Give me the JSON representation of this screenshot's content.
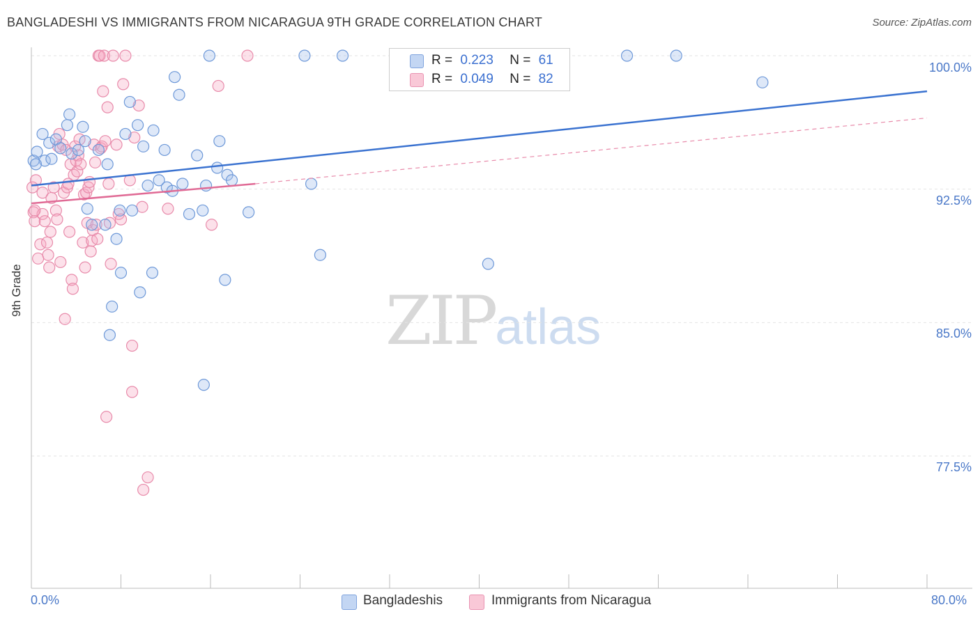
{
  "title": "BANGLADESHI VS IMMIGRANTS FROM NICARAGUA 9TH GRADE CORRELATION CHART",
  "source": "Source: ZipAtlas.com",
  "watermark": {
    "zip": "ZIP",
    "atlas": "atlas"
  },
  "legend": {
    "r_label": "R =",
    "n_label": "N =",
    "series1": {
      "r": "0.223",
      "n": "61"
    },
    "series2": {
      "r": "0.049",
      "n": "82"
    }
  },
  "bottom_legend": {
    "series1": "Bangladeshis",
    "series2": "Immigrants from Nicaragua"
  },
  "colors": {
    "blue": "#3a72d0",
    "blue_fill": "#a8c4ee",
    "pink": "#e06a95",
    "pink_fill": "#f6b6ca"
  },
  "chart_data": {
    "type": "scatter",
    "title": "BANGLADESHI VS IMMIGRANTS FROM NICARAGUA 9TH GRADE CORRELATION CHART",
    "xlabel": "",
    "ylabel": "9th Grade",
    "xlim": [
      0,
      80
    ],
    "ylim": [
      70,
      100.8
    ],
    "x_tick_labels": [
      "0.0%",
      "80.0%"
    ],
    "y_ticks": [
      77.5,
      85.0,
      92.5,
      100.0
    ],
    "y_tick_labels": [
      "77.5%",
      "85.0%",
      "92.5%",
      "100.0%"
    ],
    "series": [
      {
        "name": "Bangladeshis",
        "color": "#3a72d0",
        "trend": {
          "x0": 0,
          "y0": 92.7,
          "x1": 80,
          "y1": 98.0,
          "dashed_extension": false
        },
        "points": [
          [
            0.2,
            94.1
          ],
          [
            0.5,
            94.6
          ],
          [
            1.0,
            95.6
          ],
          [
            1.2,
            94.1
          ],
          [
            1.6,
            95.1
          ],
          [
            1.8,
            94.2
          ],
          [
            2.2,
            95.3
          ],
          [
            2.6,
            94.8
          ],
          [
            3.2,
            96.1
          ],
          [
            3.4,
            96.7
          ],
          [
            3.6,
            94.5
          ],
          [
            4.2,
            94.7
          ],
          [
            4.6,
            96.0
          ],
          [
            4.8,
            95.2
          ],
          [
            5.0,
            91.4
          ],
          [
            5.4,
            90.5
          ],
          [
            6.0,
            94.7
          ],
          [
            6.6,
            90.5
          ],
          [
            6.8,
            93.9
          ],
          [
            7.0,
            84.3
          ],
          [
            7.2,
            85.9
          ],
          [
            7.6,
            89.7
          ],
          [
            7.9,
            91.3
          ],
          [
            8.0,
            87.8
          ],
          [
            8.4,
            95.6
          ],
          [
            8.8,
            97.4
          ],
          [
            9.0,
            91.3
          ],
          [
            9.5,
            96.1
          ],
          [
            9.7,
            86.7
          ],
          [
            10.0,
            94.9
          ],
          [
            10.4,
            92.7
          ],
          [
            10.8,
            87.8
          ],
          [
            10.9,
            95.8
          ],
          [
            11.4,
            93.0
          ],
          [
            11.9,
            94.7
          ],
          [
            12.1,
            92.6
          ],
          [
            12.6,
            92.4
          ],
          [
            12.8,
            98.8
          ],
          [
            13.2,
            97.8
          ],
          [
            13.5,
            92.8
          ],
          [
            14.1,
            91.1
          ],
          [
            14.8,
            94.4
          ],
          [
            15.3,
            91.3
          ],
          [
            15.4,
            81.5
          ],
          [
            15.6,
            92.7
          ],
          [
            15.9,
            100.0
          ],
          [
            16.6,
            93.7
          ],
          [
            16.8,
            95.2
          ],
          [
            17.3,
            87.4
          ],
          [
            17.5,
            93.3
          ],
          [
            17.9,
            93.0
          ],
          [
            19.4,
            91.2
          ],
          [
            24.4,
            100.0
          ],
          [
            25.0,
            92.8
          ],
          [
            25.8,
            88.8
          ],
          [
            27.8,
            100.0
          ],
          [
            40.8,
            88.3
          ],
          [
            53.2,
            100.0
          ],
          [
            57.6,
            100.0
          ],
          [
            65.3,
            98.5
          ],
          [
            0.4,
            93.9
          ]
        ]
      },
      {
        "name": "Immigrants from Nicaragua",
        "color": "#e06a95",
        "trend": {
          "x0": 0,
          "y0": 91.7,
          "x1": 20,
          "y1": 92.8,
          "dashed_extension": true,
          "x_end": 80,
          "y_end": 96.5
        },
        "points": [
          [
            0.1,
            92.6
          ],
          [
            0.2,
            91.2
          ],
          [
            0.3,
            90.7
          ],
          [
            0.4,
            93.0
          ],
          [
            0.6,
            88.6
          ],
          [
            0.8,
            89.4
          ],
          [
            1.0,
            91.1
          ],
          [
            1.0,
            92.3
          ],
          [
            1.2,
            90.7
          ],
          [
            1.4,
            89.5
          ],
          [
            1.5,
            88.8
          ],
          [
            1.6,
            88.1
          ],
          [
            1.7,
            90.1
          ],
          [
            1.8,
            92.0
          ],
          [
            2.0,
            92.6
          ],
          [
            2.2,
            91.3
          ],
          [
            2.3,
            90.8
          ],
          [
            2.4,
            94.9
          ],
          [
            2.5,
            95.6
          ],
          [
            2.6,
            88.4
          ],
          [
            2.8,
            95.0
          ],
          [
            2.9,
            92.3
          ],
          [
            3.0,
            85.2
          ],
          [
            3.1,
            94.7
          ],
          [
            3.2,
            92.6
          ],
          [
            3.3,
            92.8
          ],
          [
            3.4,
            90.1
          ],
          [
            3.5,
            93.9
          ],
          [
            3.6,
            87.4
          ],
          [
            3.7,
            86.9
          ],
          [
            3.8,
            93.3
          ],
          [
            3.9,
            94.9
          ],
          [
            4.0,
            94.1
          ],
          [
            4.1,
            93.5
          ],
          [
            4.2,
            94.4
          ],
          [
            4.3,
            95.3
          ],
          [
            4.4,
            93.9
          ],
          [
            4.6,
            89.5
          ],
          [
            4.7,
            92.2
          ],
          [
            4.8,
            88.1
          ],
          [
            4.9,
            92.3
          ],
          [
            5.0,
            90.6
          ],
          [
            5.1,
            92.6
          ],
          [
            5.2,
            92.9
          ],
          [
            5.3,
            89.0
          ],
          [
            5.4,
            89.6
          ],
          [
            5.5,
            90.2
          ],
          [
            5.6,
            95.0
          ],
          [
            5.7,
            94.0
          ],
          [
            5.8,
            90.5
          ],
          [
            5.9,
            89.7
          ],
          [
            6.0,
            100.0
          ],
          [
            6.1,
            100.0
          ],
          [
            6.2,
            94.8
          ],
          [
            6.3,
            94.9
          ],
          [
            6.4,
            98.0
          ],
          [
            6.5,
            100.0
          ],
          [
            6.6,
            95.2
          ],
          [
            6.7,
            79.7
          ],
          [
            6.8,
            97.1
          ],
          [
            6.9,
            92.8
          ],
          [
            7.0,
            90.6
          ],
          [
            7.1,
            88.3
          ],
          [
            7.3,
            100.0
          ],
          [
            7.6,
            95.0
          ],
          [
            7.8,
            91.1
          ],
          [
            8.0,
            90.8
          ],
          [
            8.2,
            98.4
          ],
          [
            8.4,
            100.0
          ],
          [
            8.8,
            93.0
          ],
          [
            9.0,
            83.7
          ],
          [
            9.0,
            81.1
          ],
          [
            9.2,
            95.4
          ],
          [
            9.6,
            97.2
          ],
          [
            9.9,
            91.5
          ],
          [
            10.0,
            75.6
          ],
          [
            10.4,
            76.3
          ],
          [
            12.2,
            91.4
          ],
          [
            16.1,
            90.5
          ],
          [
            16.7,
            98.3
          ],
          [
            19.3,
            100.0
          ],
          [
            0.3,
            91.3
          ]
        ]
      }
    ]
  }
}
